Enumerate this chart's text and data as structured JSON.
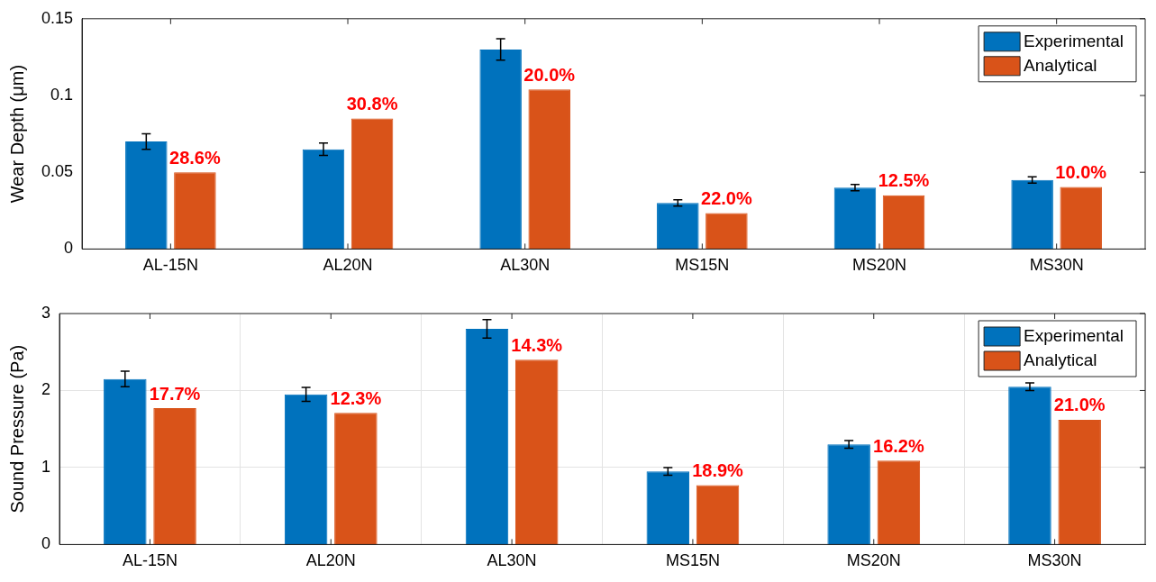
{
  "chart_data": [
    {
      "type": "bar",
      "ylabel": "Wear Depth (μm)",
      "categories": [
        "AL-15N",
        "AL20N",
        "AL30N",
        "MS15N",
        "MS20N",
        "MS30N"
      ],
      "series": [
        {
          "name": "Experimental",
          "color": "#0072bd",
          "values": [
            0.07,
            0.065,
            0.13,
            0.03,
            0.04,
            0.045
          ],
          "errors": [
            0.005,
            0.004,
            0.007,
            0.002,
            0.002,
            0.002
          ]
        },
        {
          "name": "Analytical",
          "color": "#d95319",
          "values": [
            0.05,
            0.085,
            0.104,
            0.0234,
            0.035,
            0.0405
          ]
        }
      ],
      "ylim": [
        0,
        0.15
      ],
      "yticks": [
        0,
        0.05,
        0.1,
        0.15
      ],
      "grid": false,
      "legend": "top right",
      "annotations": [
        {
          "text": "28.6%",
          "x": "AL-15N",
          "y": 0.05
        },
        {
          "text": "30.8%",
          "x": "AL20N",
          "y": 0.085
        },
        {
          "text": "20.0%",
          "x": "AL30N",
          "y": 0.104
        },
        {
          "text": "22.0%",
          "x": "MS15N",
          "y": 0.0234
        },
        {
          "text": "12.5%",
          "x": "MS20N",
          "y": 0.035
        },
        {
          "text": "10.0%",
          "x": "MS30N",
          "y": 0.0405
        }
      ]
    },
    {
      "type": "bar",
      "ylabel": "Sound Pressure (Pa)",
      "categories": [
        "AL-15N",
        "AL20N",
        "AL30N",
        "MS15N",
        "MS20N",
        "MS30N"
      ],
      "series": [
        {
          "name": "Experimental",
          "color": "#0072bd",
          "values": [
            2.15,
            1.95,
            2.8,
            0.95,
            1.3,
            2.05
          ],
          "errors": [
            0.1,
            0.09,
            0.12,
            0.05,
            0.05,
            0.05
          ]
        },
        {
          "name": "Analytical",
          "color": "#d95319",
          "values": [
            1.77,
            1.71,
            2.4,
            0.77,
            1.09,
            1.62
          ]
        }
      ],
      "ylim": [
        0,
        3
      ],
      "yticks": [
        0,
        1,
        2,
        3
      ],
      "grid": true,
      "legend": "top right",
      "annotations": [
        {
          "text": "17.7%",
          "x": "AL-15N",
          "y": 1.77
        },
        {
          "text": "12.3%",
          "x": "AL20N",
          "y": 1.71
        },
        {
          "text": "14.3%",
          "x": "AL30N",
          "y": 2.4
        },
        {
          "text": "18.9%",
          "x": "MS15N",
          "y": 0.77
        },
        {
          "text": "16.2%",
          "x": "MS20N",
          "y": 1.09
        },
        {
          "text": "21.0%",
          "x": "MS30N",
          "y": 1.62
        }
      ]
    }
  ]
}
